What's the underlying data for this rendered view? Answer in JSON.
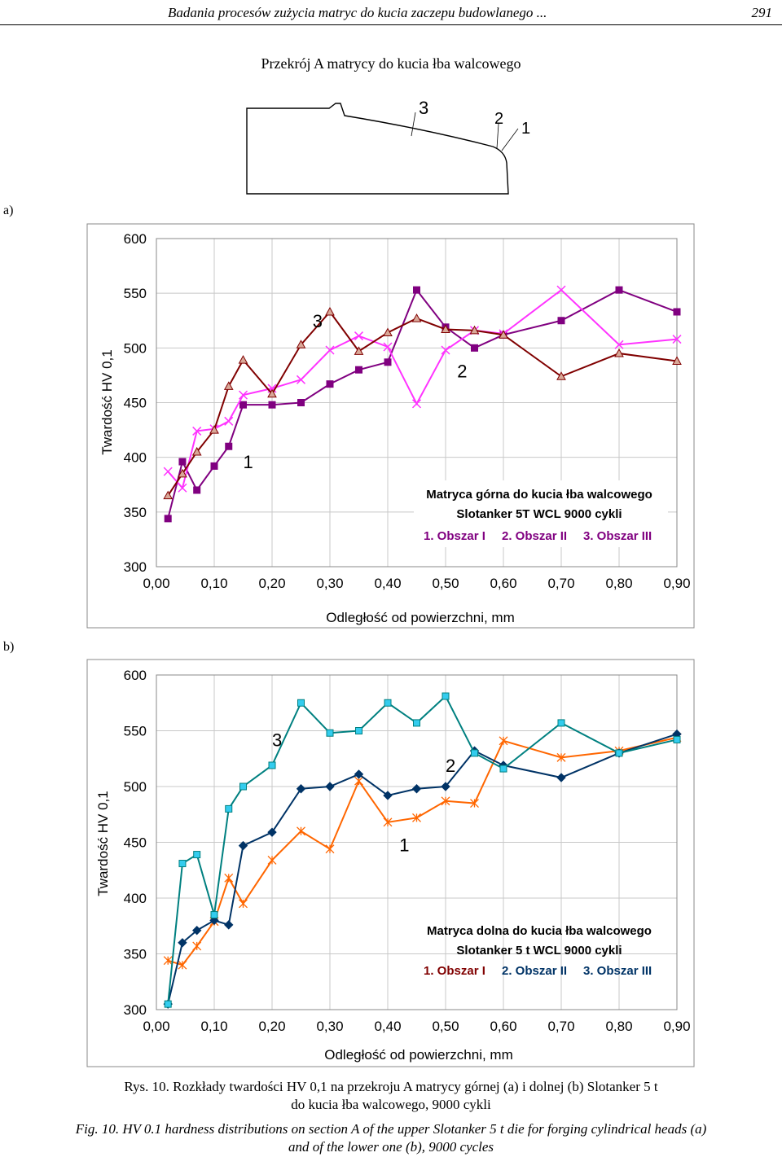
{
  "header": {
    "running_title": "Badania procesów zużycia matryc do kucia zaczepu budowlanego ...",
    "page_number": "291"
  },
  "section_title": "Przekrój A matrycy do kucia łba walcowego",
  "cross_section": {
    "labels": [
      "3",
      "2",
      "1"
    ]
  },
  "panel_labels": {
    "a": "a)",
    "b": "b)"
  },
  "chart_data": [
    {
      "type": "line",
      "panel": "a",
      "ylabel": "Twardość HV 0,1",
      "xlabel": "Odległość od powierzchni, mm",
      "ylim": [
        300,
        600
      ],
      "xlim": [
        0,
        0.9
      ],
      "yticks": [
        "300",
        "350",
        "400",
        "450",
        "500",
        "550",
        "600"
      ],
      "xticks": [
        "0,00",
        "0,10",
        "0,20",
        "0,30",
        "0,40",
        "0,50",
        "0,60",
        "0,70",
        "0,80",
        "0,90"
      ],
      "legend": {
        "line1": "Matryca górna do kucia łba walcowego",
        "line2": "Slotanker 5T    WCL  9000 cykli",
        "item1": "1. Obszar I",
        "item2": "2. Obszar II",
        "item3": "3. Obszar III"
      },
      "annotations": [
        {
          "text": "1",
          "x": 0.15,
          "y": 390
        },
        {
          "text": "2",
          "x": 0.52,
          "y": 473
        },
        {
          "text": "3",
          "x": 0.27,
          "y": 519
        }
      ],
      "series": [
        {
          "name": "1. Obszar I",
          "marker": "square",
          "color": "#800080",
          "x": [
            0.02,
            0.045,
            0.07,
            0.1,
            0.125,
            0.15,
            0.2,
            0.25,
            0.3,
            0.35,
            0.4,
            0.45,
            0.5,
            0.55,
            0.6,
            0.7,
            0.8,
            0.9
          ],
          "y": [
            344,
            396,
            370,
            392,
            410,
            448,
            448,
            450,
            467,
            480,
            487,
            553,
            519,
            500,
            512,
            525,
            553,
            533
          ]
        },
        {
          "name": "2. Obszar II",
          "marker": "x",
          "color": "#ff33ff",
          "x": [
            0.02,
            0.045,
            0.07,
            0.1,
            0.125,
            0.15,
            0.2,
            0.25,
            0.3,
            0.35,
            0.4,
            0.45,
            0.5,
            0.55,
            0.6,
            0.7,
            0.8,
            0.9
          ],
          "y": [
            387,
            372,
            424,
            426,
            433,
            457,
            463,
            471,
            498,
            511,
            501,
            449,
            498,
            516,
            513,
            553,
            503,
            508
          ]
        },
        {
          "name": "3. Obszar III",
          "marker": "triangle",
          "color": "#800000",
          "x": [
            0.02,
            0.045,
            0.07,
            0.1,
            0.125,
            0.15,
            0.2,
            0.25,
            0.3,
            0.35,
            0.4,
            0.45,
            0.5,
            0.55,
            0.6,
            0.7,
            0.8,
            0.9
          ],
          "y": [
            365,
            385,
            405,
            425,
            465,
            489,
            458,
            503,
            533,
            497,
            514,
            527,
            517,
            516,
            512,
            474,
            495,
            488
          ]
        }
      ]
    },
    {
      "type": "line",
      "panel": "b",
      "ylabel": "Twardość HV 0,1",
      "xlabel": "Odległość od powierzchni, mm",
      "ylim": [
        300,
        600
      ],
      "xlim": [
        0,
        0.9
      ],
      "yticks": [
        "300",
        "350",
        "400",
        "450",
        "500",
        "550",
        "600"
      ],
      "xticks": [
        "0,00",
        "0,10",
        "0,20",
        "0,30",
        "0,40",
        "0,50",
        "0,60",
        "0,70",
        "0,80",
        "0,90"
      ],
      "legend": {
        "line1": "Matryca dolna do kucia łba walcowego",
        "line2": "Slotanker 5 t  WCL  9000 cykli",
        "item1": "1. Obszar I",
        "item2": "2. Obszar II",
        "item3": "3. Obszar III"
      },
      "annotations": [
        {
          "text": "1",
          "x": 0.42,
          "y": 442
        },
        {
          "text": "2",
          "x": 0.5,
          "y": 513
        },
        {
          "text": "3",
          "x": 0.2,
          "y": 536
        }
      ],
      "series": [
        {
          "name": "1. Obszar I",
          "marker": "asterisk",
          "color": "#ff6600",
          "x": [
            0.02,
            0.045,
            0.07,
            0.1,
            0.125,
            0.15,
            0.2,
            0.25,
            0.3,
            0.35,
            0.4,
            0.45,
            0.5,
            0.55,
            0.6,
            0.7,
            0.8,
            0.9
          ],
          "y": [
            344,
            340,
            357,
            379,
            418,
            395,
            434,
            460,
            444,
            505,
            468,
            472,
            487,
            485,
            541,
            526,
            532,
            544
          ]
        },
        {
          "name": "2. Obszar II",
          "marker": "diamond",
          "color": "#003366",
          "x": [
            0.02,
            0.045,
            0.07,
            0.1,
            0.125,
            0.15,
            0.2,
            0.25,
            0.3,
            0.35,
            0.4,
            0.45,
            0.5,
            0.55,
            0.6,
            0.7,
            0.8,
            0.9
          ],
          "y": [
            305,
            360,
            371,
            380,
            376,
            447,
            459,
            498,
            500,
            511,
            492,
            498,
            500,
            532,
            519,
            508,
            530,
            547
          ]
        },
        {
          "name": "3. Obszar III",
          "marker": "square",
          "color": "#008080",
          "x": [
            0.02,
            0.045,
            0.07,
            0.1,
            0.125,
            0.15,
            0.2,
            0.25,
            0.3,
            0.35,
            0.4,
            0.45,
            0.5,
            0.55,
            0.6,
            0.7,
            0.8,
            0.9
          ],
          "y": [
            305,
            431,
            439,
            385,
            480,
            500,
            519,
            575,
            548,
            550,
            575,
            557,
            581,
            530,
            516,
            557,
            530,
            542
          ]
        }
      ]
    }
  ],
  "caption_pl": {
    "line1": "Rys. 10. Rozkłady twardości HV 0,1 na przekroju A matrycy górnej (a) i dolnej (b) Slotanker 5 t",
    "line2": "do kucia łba walcowego, 9000 cykli"
  },
  "caption_en": {
    "line1": "Fig. 10. HV 0.1 hardness distributions on section A of the upper Slotanker 5 t die for forging cylindrical heads (a)",
    "line2": "and of the lower one (b), 9000 cycles"
  },
  "legend_colors": {
    "item1_a": "#800080",
    "item2_a": "#800080",
    "item3_a": "#800080",
    "item1_b": "#800000",
    "item2_b": "#003366",
    "item3_b": "#003366"
  }
}
